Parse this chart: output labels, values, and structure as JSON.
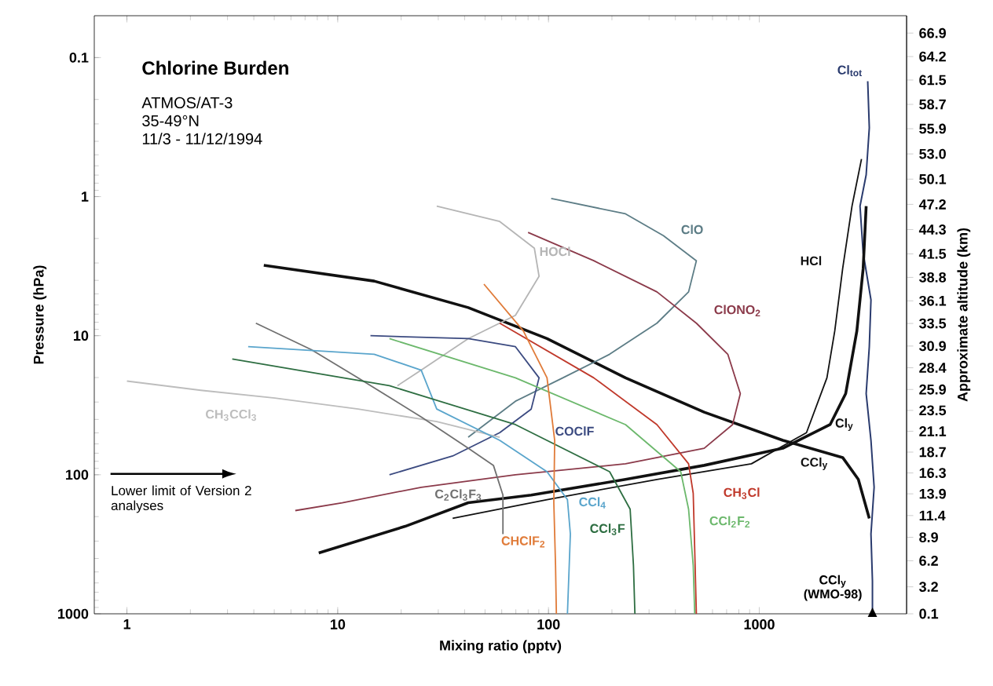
{
  "chart_data": {
    "type": "line",
    "title": "Chlorine Burden",
    "subtitle": "ATMOS/AT-3",
    "xlabel": "Mixing ratio (pptv)",
    "ylabel": "Pressure (hPa)",
    "y2label": "Approximate altitude (km)",
    "log": "xy",
    "xlim": [
      0.7,
      5000
    ],
    "ylim": [
      1000,
      0.05
    ],
    "xticks": [
      1,
      10,
      100,
      1000
    ],
    "yticks": [
      0.1,
      1,
      10,
      100,
      1000
    ],
    "y2lim": [
      0.1,
      68.9
    ],
    "y2ticks": [
      0.1,
      3.2,
      6.2,
      8.9,
      11.4,
      13.9,
      16.3,
      18.7,
      21.1,
      23.5,
      25.9,
      28.4,
      30.9,
      33.5,
      36.1,
      38.8,
      41.5,
      44.3,
      47.2,
      50.1,
      {
        "value": 53.0,
        "label": "53.0"
      },
      55.9,
      58.7,
      61.5,
      64.2,
      66.9
    ],
    "annotations": [
      "35-49°N",
      "11/3 - 11/12/1994",
      "Lower limit of Version 2 analyses",
      {
        "text": "CCl$_{y}$ (WMO-98)",
        "x": 3443,
        "y": 1000
      }
    ],
    "series": [
      {
        "name": "Cl$_{tot}$",
        "color": "#2a3b6e",
        "x": [
          3270,
          3327,
          3215,
          3006,
          3111,
          3388,
          3327,
          3215,
          3388,
          3507,
          3388,
          3443,
          3443
        ],
        "values": [
          0.148,
          0.32,
          0.697,
          1.17,
          2.54,
          5.52,
          12.0,
          26.1,
          56.6,
          123,
          267,
          581,
          1000
        ]
      },
      {
        "name": "HCl",
        "color": "#111111",
        "x": [
          35.1,
          98.4,
          327,
          918,
          1675,
          2094,
          2281,
          2487,
          2754,
          3055
        ],
        "values": [
          206,
          151,
          108,
          83.4,
          49.8,
          20.1,
          9.25,
          3.29,
          1.17,
          0.537
        ]
      },
      {
        "name": "Cl$_{y}$",
        "color": "#111111",
        "x": [
          8.13,
          20.9,
          41.6,
          82.8,
          232,
          548,
          1294,
          2168,
          2570,
          2904,
          3111,
          3215
        ],
        "values": [
          365,
          235,
          159,
          140,
          108,
          85.6,
          64.5,
          43.6,
          26.1,
          9.25,
          3.29,
          1.17
        ]
      },
      {
        "name": "CCl$_{y}$",
        "color": "#111111",
        "x": [
          4.46,
          14.9,
          41.6,
          98.4,
          232,
          548,
          1294,
          2487,
          2951,
          3327
        ],
        "values": [
          3.12,
          4.05,
          6.28,
          10.5,
          20.1,
          35.5,
          56.6,
          75.2,
          108,
          206
        ]
      },
      {
        "name": "ClO",
        "color": "#5d7d86",
        "x": [
          103,
          232,
          351,
          503,
          462,
          327,
          195,
          117,
          69.7,
          41.6
        ],
        "values": [
          1.03,
          1.33,
          1.91,
          2.89,
          4.84,
          8.13,
          13.6,
          20.1,
          29.6,
          53.7
        ]
      },
      {
        "name": "ClONO$_{2}$",
        "color": "#8b3a4a",
        "x": [
          80,
          164,
          327,
          503,
          709,
          813,
          747,
          548,
          232,
          69.7,
          24.9,
          10.5,
          6.29
        ],
        "values": [
          1.81,
          2.89,
          4.84,
          8.13,
          13.6,
          26.1,
          43.6,
          64.5,
          83.4,
          100,
          123,
          159,
          181
        ]
      },
      {
        "name": "HOCl",
        "color": "#b5b5b5",
        "x": [
          29.5,
          58.7,
          85.7,
          90.2,
          69.7,
          41.6,
          24.9,
          19.2
        ],
        "values": [
          1.17,
          1.51,
          2.35,
          3.74,
          7.14,
          10.5,
          17.7,
          22.9
        ]
      },
      {
        "name": "COClF",
        "color": "#3b4a80",
        "x": [
          14.3,
          41.6,
          69.7,
          90.2,
          82.8,
          58.7,
          35.1,
          17.6
        ],
        "values": [
          10,
          10.5,
          12.0,
          20.1,
          33.7,
          49.8,
          73.3,
          100
        ]
      },
      {
        "name": "CH$_{3}$CCl$_{3}$",
        "color": "#bdbdbd",
        "x": [
          1,
          2.24,
          5.03,
          12.5,
          29.5,
          58.7
        ],
        "values": [
          21.2,
          24.7,
          28.1,
          33.7,
          41.5,
          53.7
        ]
      },
      {
        "name": "C$_{2}$Cl$_{3}$F$_{3}$",
        "color": "#707070",
        "x": [
          4.09,
          7.5,
          12.5,
          24.9,
          41.6,
          54.8,
          60.8,
          60.8
        ],
        "values": [
          8.13,
          12.6,
          20.1,
          38.4,
          64.5,
          85.6,
          140,
          267
        ]
      },
      {
        "name": "CCl$_{4}$",
        "color": "#5aa5cc",
        "x": [
          3.76,
          14.9,
          24.9,
          29.5,
          58.7,
          98.4,
          123,
          127,
          123
        ],
        "values": [
          12.0,
          13.6,
          17.7,
          33.7,
          56.6,
          95.1,
          151,
          267,
          1000
        ]
      },
      {
        "name": "CCl$_{3}$F",
        "color": "#2e6e42",
        "x": [
          3.16,
          17.6,
          69.7,
          195,
          244,
          253,
          257
        ],
        "values": [
          14.7,
          22.9,
          43.6,
          95.1,
          177,
          449,
          1000
        ]
      },
      {
        "name": "CCl$_{2}$F$_{2}$",
        "color": "#6cb86c",
        "x": [
          17.6,
          69.7,
          232,
          424,
          462,
          486,
          494
        ],
        "values": [
          10.5,
          20.1,
          43.6,
          95.1,
          177,
          449,
          1000
        ]
      },
      {
        "name": "CH$_{3}$Cl",
        "color": "#c0392b",
        "x": [
          58.7,
          164,
          327,
          462,
          486,
          494,
          503
        ],
        "values": [
          8.13,
          20.1,
          43.6,
          83.4,
          136,
          346,
          1000
        ]
      },
      {
        "name": "CHClF$_{2}$",
        "color": "#e07b39",
        "x": [
          49.4,
          76,
          98.4,
          107,
          106,
          108,
          109
        ],
        "values": [
          4.26,
          9.25,
          20.1,
          56.6,
          159,
          449,
          1000
        ]
      }
    ]
  }
}
